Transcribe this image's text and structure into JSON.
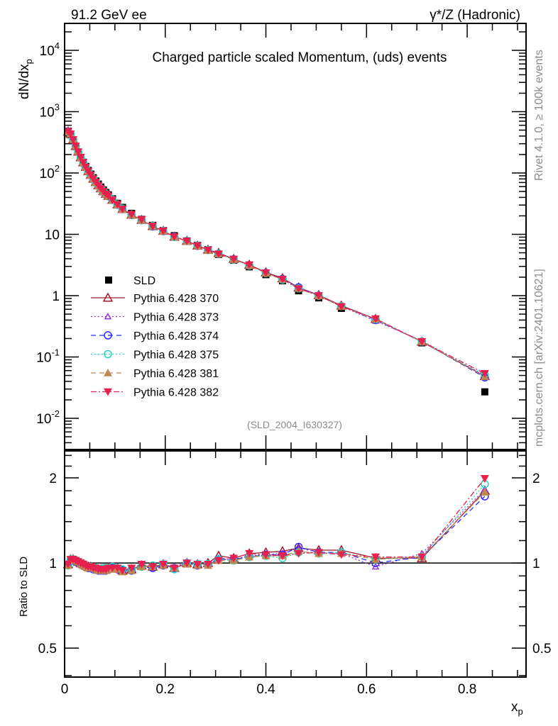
{
  "header": {
    "left": "91.2 GeV ee",
    "right": "γ*/Z (Hadronic)"
  },
  "side": {
    "rivet": "Rivet 4.1.0, ≥ 100k events",
    "mcplots": "mcplots.cern.ch [arXiv:2401.10621]"
  },
  "chart_data": [
    {
      "type": "scatter",
      "title": "Charged particle scaled Momentum, (uds) events",
      "ylabel": "dN/dx_p",
      "yscale": "log",
      "ylim": [
        0.0031,
        27500
      ],
      "xlim": [
        0,
        0.917
      ],
      "yticks": [
        {
          "v": 0.01,
          "label": "10^-2"
        },
        {
          "v": 0.1,
          "label": "10^-1"
        },
        {
          "v": 1,
          "label": "1"
        },
        {
          "v": 10,
          "label": "10"
        },
        {
          "v": 100,
          "label": "10^2"
        },
        {
          "v": 1000,
          "label": "10^3"
        },
        {
          "v": 10000,
          "label": "10^4"
        }
      ],
      "annotation": "(SLD_2004_I630327)",
      "legend_placement": "center-left",
      "x": [
        0.007,
        0.012,
        0.017,
        0.022,
        0.027,
        0.032,
        0.037,
        0.042,
        0.047,
        0.052,
        0.057,
        0.062,
        0.067,
        0.072,
        0.077,
        0.082,
        0.087,
        0.095,
        0.105,
        0.115,
        0.133,
        0.153,
        0.175,
        0.196,
        0.218,
        0.243,
        0.264,
        0.285,
        0.306,
        0.336,
        0.367,
        0.4,
        0.433,
        0.465,
        0.505,
        0.55,
        0.618,
        0.71,
        0.835
      ],
      "data": {
        "name": "SLD",
        "color": "#000000",
        "values": [
          480,
          420,
          340,
          270,
          220,
          180,
          150,
          128,
          110,
          96,
          84,
          74,
          66,
          59,
          53,
          48,
          44,
          38,
          32,
          27.5,
          22,
          17.5,
          14,
          11.5,
          9.5,
          7.8,
          6.6,
          5.6,
          4.7,
          3.8,
          2.95,
          2.2,
          1.75,
          1.2,
          0.92,
          0.62,
          0.4,
          0.17,
          0.027
        ]
      },
      "series_note": "MC values in upper panel = SLD value × ratio",
      "series": [
        {
          "name": "Pythia 6.428 370",
          "color": "#a01a2a",
          "marker": "triangle-open",
          "dash": "",
          "ratio": [
            0.99,
            1.03,
            1.03,
            1.02,
            1.01,
            1.0,
            0.99,
            0.98,
            0.97,
            0.97,
            0.96,
            0.96,
            0.95,
            0.95,
            0.95,
            0.95,
            0.96,
            0.96,
            0.96,
            0.94,
            0.95,
            0.98,
            0.97,
            0.99,
            0.96,
            1.0,
            0.99,
            1.0,
            1.06,
            1.04,
            1.08,
            1.09,
            1.1,
            1.13,
            1.11,
            1.11,
            1.04,
            1.04,
            1.8
          ]
        },
        {
          "name": "Pythia 6.428 373",
          "color": "#9a30d8",
          "marker": "triangle-open-small",
          "dash": "2,3",
          "ratio": [
            0.98,
            1.02,
            1.03,
            1.02,
            1.01,
            1.0,
            0.98,
            0.97,
            0.97,
            0.96,
            0.96,
            0.95,
            0.94,
            0.95,
            0.94,
            0.95,
            0.95,
            0.96,
            0.95,
            0.94,
            0.95,
            0.97,
            0.97,
            0.99,
            0.97,
            1.01,
            0.99,
            0.99,
            1.04,
            1.03,
            1.06,
            1.07,
            1.08,
            1.13,
            1.09,
            1.08,
            0.97,
            1.08,
            1.82
          ]
        },
        {
          "name": "Pythia 6.428 374",
          "color": "#2a2aff",
          "marker": "circle-open",
          "dash": "7,5",
          "ratio": [
            0.99,
            1.02,
            1.02,
            1.02,
            1.0,
            0.99,
            0.98,
            0.97,
            0.96,
            0.96,
            0.95,
            0.95,
            0.94,
            0.94,
            0.94,
            0.94,
            0.95,
            0.96,
            0.95,
            0.94,
            0.94,
            0.97,
            0.96,
            0.98,
            0.96,
            1.0,
            0.98,
            0.99,
            1.03,
            1.03,
            1.05,
            1.07,
            1.07,
            1.14,
            1.09,
            1.09,
            1.0,
            1.05,
            1.72
          ]
        },
        {
          "name": "Pythia 6.428 375",
          "color": "#20d8c0",
          "marker": "circle-open",
          "dash": "2,3",
          "ratio": [
            0.98,
            1.03,
            1.03,
            1.02,
            1.01,
            1.0,
            0.99,
            0.98,
            0.97,
            0.97,
            0.96,
            0.96,
            0.95,
            0.95,
            0.96,
            0.96,
            0.96,
            0.97,
            0.96,
            0.95,
            0.95,
            0.97,
            0.98,
            0.99,
            0.95,
            1.0,
            0.99,
            0.99,
            1.03,
            1.02,
            1.05,
            1.06,
            1.04,
            1.09,
            1.08,
            1.09,
            1.03,
            1.05,
            1.9
          ]
        },
        {
          "name": "Pythia 6.428 381",
          "color": "#c08850",
          "marker": "triangle-filled",
          "dash": "7,5",
          "ratio": [
            0.98,
            1.02,
            1.03,
            1.02,
            1.01,
            0.99,
            0.98,
            0.97,
            0.96,
            0.96,
            0.96,
            0.95,
            0.94,
            0.94,
            0.94,
            0.94,
            0.95,
            0.95,
            0.95,
            0.93,
            0.94,
            0.97,
            0.97,
            0.98,
            0.96,
            0.99,
            0.98,
            0.98,
            1.02,
            1.02,
            1.05,
            1.06,
            1.06,
            1.1,
            1.08,
            1.08,
            1.03,
            1.05,
            1.78
          ]
        },
        {
          "name": "Pythia 6.428 382",
          "color": "#e8204f",
          "marker": "triangle-down-filled",
          "dash": "8,3,2,3",
          "ratio": [
            0.99,
            1.03,
            1.03,
            1.02,
            1.01,
            1.0,
            0.99,
            0.98,
            0.97,
            0.97,
            0.96,
            0.96,
            0.95,
            0.95,
            0.95,
            0.95,
            0.96,
            0.96,
            0.96,
            0.94,
            0.96,
            0.99,
            0.97,
            0.99,
            0.96,
            1.0,
            0.99,
            0.99,
            1.02,
            1.04,
            1.08,
            1.07,
            1.06,
            1.08,
            1.09,
            1.07,
            1.05,
            1.05,
            1.99
          ]
        }
      ]
    },
    {
      "type": "line",
      "ylabel": "Ratio to SLD",
      "xlabel": "x_p",
      "yscale": "log2",
      "ylim": [
        0.395,
        2.49
      ],
      "xlim": [
        0,
        0.917
      ],
      "yticks": [
        {
          "v": 0.5,
          "label": "0.5"
        },
        {
          "v": 1,
          "label": "1"
        },
        {
          "v": 2,
          "label": "2"
        }
      ],
      "xticks": [
        {
          "v": 0,
          "label": "0"
        },
        {
          "v": 0.2,
          "label": "0.2"
        },
        {
          "v": 0.4,
          "label": "0.4"
        },
        {
          "v": 0.6,
          "label": "0.6"
        },
        {
          "v": 0.8,
          "label": "0.8"
        }
      ]
    }
  ]
}
